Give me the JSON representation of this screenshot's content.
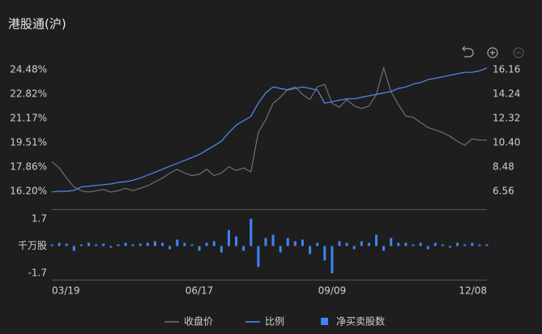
{
  "chart_data": [
    {
      "type": "line",
      "title": "港股通(沪)",
      "series": [
        {
          "name": "收盘价",
          "color": "#707070",
          "axis": "y2",
          "values": [
            8.9,
            8.4,
            7.6,
            6.9,
            6.6,
            6.5,
            6.6,
            6.7,
            6.5,
            6.6,
            6.8,
            6.6,
            6.8,
            7.0,
            7.3,
            7.6,
            8.0,
            8.3,
            8.0,
            7.8,
            7.9,
            8.3,
            7.8,
            8.0,
            8.5,
            8.2,
            8.4,
            8.1,
            11.2,
            12.2,
            13.5,
            14.0,
            14.6,
            14.8,
            14.2,
            13.8,
            14.8,
            15.0,
            13.5,
            13.2,
            13.8,
            13.3,
            13.1,
            13.3,
            14.2,
            16.3,
            14.4,
            13.4,
            12.5,
            12.4,
            12.0,
            11.6,
            11.4,
            11.2,
            10.9,
            10.5,
            10.2,
            10.7,
            10.6,
            10.6
          ]
        },
        {
          "name": "比例",
          "color": "#4d8df7",
          "values": [
            16.15,
            16.2,
            16.2,
            16.25,
            16.5,
            16.55,
            16.6,
            16.65,
            16.7,
            16.8,
            16.85,
            16.95,
            17.1,
            17.3,
            17.5,
            17.7,
            17.9,
            18.1,
            18.3,
            18.5,
            18.7,
            19.0,
            19.3,
            19.6,
            20.2,
            20.7,
            21.0,
            21.3,
            22.2,
            22.9,
            23.3,
            23.2,
            23.1,
            23.2,
            23.3,
            23.2,
            23.1,
            22.2,
            22.3,
            22.4,
            22.5,
            22.5,
            22.6,
            22.7,
            22.8,
            22.9,
            23.0,
            23.2,
            23.3,
            23.5,
            23.6,
            23.8,
            23.9,
            24.0,
            24.1,
            24.2,
            24.3,
            24.3,
            24.4,
            24.6
          ]
        }
      ],
      "ylim": [
        14.98,
        24.92
      ],
      "yticks": [
        {
          "value": 16.2,
          "label": "16.20%"
        },
        {
          "value": 17.86,
          "label": "17.86%"
        },
        {
          "value": 19.51,
          "label": "19.51%"
        },
        {
          "value": 21.17,
          "label": "21.17%"
        },
        {
          "value": 22.82,
          "label": "22.82%"
        },
        {
          "value": 24.48,
          "label": "24.48%"
        }
      ],
      "y2lim": [
        5.15,
        16.67
      ],
      "y2ticks": [
        6.56,
        8.48,
        {
          "value": 10.4,
          "label": "10.40"
        },
        12.32,
        14.24,
        16.16
      ]
    },
    {
      "type": "bar",
      "ylabel": "千万股",
      "categories": [
        "03/19",
        null,
        null,
        null,
        null,
        null,
        null,
        null,
        null,
        null,
        null,
        null,
        null,
        null,
        null,
        null,
        null,
        null,
        null,
        null,
        "06/17",
        null,
        null,
        null,
        null,
        null,
        null,
        null,
        null,
        null,
        null,
        null,
        null,
        null,
        null,
        null,
        null,
        null,
        "09/09",
        null,
        null,
        null,
        null,
        null,
        null,
        null,
        null,
        null,
        null,
        null,
        null,
        null,
        null,
        null,
        null,
        null,
        null,
        null,
        null,
        "12/08"
      ],
      "series": [
        {
          "name": "净买卖股数",
          "color": "#3d85f5",
          "values": [
            0.1,
            0.2,
            0.15,
            -0.3,
            0.1,
            0.2,
            0.1,
            0.15,
            -0.1,
            0.1,
            0.2,
            0.1,
            0.15,
            0.2,
            0.3,
            0.2,
            -0.2,
            0.4,
            0.2,
            0.1,
            -0.3,
            0.2,
            0.3,
            -0.4,
            1.0,
            0.6,
            -0.3,
            1.7,
            -1.3,
            0.5,
            0.7,
            -0.4,
            0.5,
            0.3,
            0.4,
            -0.5,
            0.2,
            -0.9,
            -1.7,
            0.3,
            0.2,
            -0.2,
            0.3,
            0.2,
            0.7,
            -0.3,
            0.5,
            0.2,
            0.2,
            0.1,
            0.2,
            -0.2,
            0.2,
            0.1,
            -0.1,
            0.2,
            0.1,
            0.2,
            0.1,
            0.1
          ]
        }
      ],
      "ylim": [
        -2.1,
        2.2
      ],
      "yticks": [
        -1.7,
        1.7
      ]
    }
  ]
}
